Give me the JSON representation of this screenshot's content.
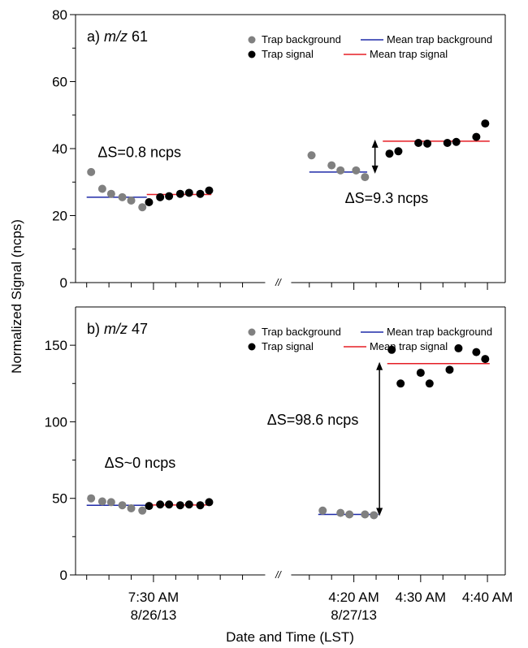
{
  "chart_data": {
    "type": "scatter",
    "y_axis_title": "Normalized Signal (ncps)",
    "x_axis_title": "Date and Time (LST)",
    "axis_break_label": "//",
    "x_axis": {
      "ticks": [
        {
          "label": "7:30 AM",
          "sublabel": "8/26/13",
          "t": 3.5
        },
        {
          "label": "4:20 AM",
          "sublabel": "8/27/13",
          "t": 12.5
        },
        {
          "label": "4:30 AM",
          "sublabel": "",
          "t": 15.5
        },
        {
          "label": "4:40 AM",
          "sublabel": "",
          "t": 18.5
        }
      ],
      "break_at": 8.7
    },
    "colors": {
      "background_point": "#808080",
      "signal_point": "#000000",
      "mean_background": "#1f2aa8",
      "mean_signal": "#e51e25"
    },
    "legend_labels": {
      "background": "Trap background",
      "signal": "Trap signal",
      "mean_background": "Mean trap background",
      "mean_signal": "Mean trap signal"
    },
    "panels": [
      {
        "id": "a",
        "label_prefix": "a) ",
        "label_italic": "m/z",
        "label_suffix": " 61",
        "ylim": [
          0,
          80
        ],
        "yticks": [
          0,
          20,
          40,
          60,
          80
        ],
        "background": [
          {
            "t": 0.7,
            "y": 33.0
          },
          {
            "t": 1.2,
            "y": 28.0
          },
          {
            "t": 1.6,
            "y": 26.5
          },
          {
            "t": 2.1,
            "y": 25.5
          },
          {
            "t": 2.5,
            "y": 24.5
          },
          {
            "t": 3.0,
            "y": 22.5
          },
          {
            "t": 10.6,
            "y": 38.0
          },
          {
            "t": 11.5,
            "y": 35.0
          },
          {
            "t": 11.9,
            "y": 33.5
          },
          {
            "t": 12.6,
            "y": 33.5
          },
          {
            "t": 13.0,
            "y": 31.5
          }
        ],
        "signal": [
          {
            "t": 3.3,
            "y": 24.0
          },
          {
            "t": 3.8,
            "y": 25.5
          },
          {
            "t": 4.2,
            "y": 25.8
          },
          {
            "t": 4.7,
            "y": 26.5
          },
          {
            "t": 5.1,
            "y": 26.8
          },
          {
            "t": 5.6,
            "y": 26.5
          },
          {
            "t": 6.0,
            "y": 27.5
          },
          {
            "t": 14.1,
            "y": 38.5
          },
          {
            "t": 14.5,
            "y": 39.2
          },
          {
            "t": 15.4,
            "y": 41.7
          },
          {
            "t": 15.8,
            "y": 41.5
          },
          {
            "t": 16.7,
            "y": 41.7
          },
          {
            "t": 17.1,
            "y": 42.0
          },
          {
            "t": 18.0,
            "y": 43.5
          },
          {
            "t": 18.4,
            "y": 47.5
          }
        ],
        "mean_background": [
          {
            "t0": 0.5,
            "t1": 3.2,
            "y": 25.5
          },
          {
            "t0": 10.5,
            "t1": 13.1,
            "y": 33.0
          }
        ],
        "mean_signal": [
          {
            "t0": 3.2,
            "t1": 6.1,
            "y": 26.3
          },
          {
            "t0": 13.8,
            "t1": 18.6,
            "y": 42.2
          }
        ],
        "annotations": [
          {
            "text": "ΔS=0.8 ncps",
            "t": 1.0,
            "y": 37.5
          },
          {
            "text": "ΔS=9.3 ncps",
            "t": 12.1,
            "y": 23.8
          }
        ],
        "arrow": {
          "t": 13.45,
          "y0": 33.0,
          "y1": 42.2
        }
      },
      {
        "id": "b",
        "label_prefix": "b) ",
        "label_italic": "m/z",
        "label_suffix": " 47",
        "ylim": [
          0,
          175
        ],
        "yticks": [
          0,
          50,
          100,
          150
        ],
        "background": [
          {
            "t": 0.7,
            "y": 50.0
          },
          {
            "t": 1.2,
            "y": 48.0
          },
          {
            "t": 1.6,
            "y": 47.5
          },
          {
            "t": 2.1,
            "y": 45.5
          },
          {
            "t": 2.5,
            "y": 43.5
          },
          {
            "t": 3.0,
            "y": 42.0
          },
          {
            "t": 11.1,
            "y": 42.0
          },
          {
            "t": 11.9,
            "y": 40.5
          },
          {
            "t": 12.3,
            "y": 39.5
          },
          {
            "t": 13.0,
            "y": 39.5
          },
          {
            "t": 13.4,
            "y": 39.0
          }
        ],
        "signal": [
          {
            "t": 3.3,
            "y": 45.0
          },
          {
            "t": 3.8,
            "y": 46.0
          },
          {
            "t": 4.2,
            "y": 46.0
          },
          {
            "t": 4.7,
            "y": 45.5
          },
          {
            "t": 5.1,
            "y": 46.0
          },
          {
            "t": 5.6,
            "y": 45.5
          },
          {
            "t": 6.0,
            "y": 47.5
          },
          {
            "t": 14.2,
            "y": 147.0
          },
          {
            "t": 14.6,
            "y": 125.0
          },
          {
            "t": 15.5,
            "y": 132.0
          },
          {
            "t": 15.9,
            "y": 125.0
          },
          {
            "t": 16.8,
            "y": 134.0
          },
          {
            "t": 17.2,
            "y": 148.0
          },
          {
            "t": 18.0,
            "y": 145.5
          },
          {
            "t": 18.4,
            "y": 141.0
          }
        ],
        "mean_background": [
          {
            "t0": 0.5,
            "t1": 3.2,
            "y": 45.5
          },
          {
            "t0": 10.9,
            "t1": 13.6,
            "y": 39.5
          }
        ],
        "mean_signal": [
          {
            "t0": 3.2,
            "t1": 6.1,
            "y": 45.7
          },
          {
            "t0": 14.0,
            "t1": 18.6,
            "y": 138.0
          }
        ],
        "annotations": [
          {
            "text": "ΔS~0 ncps",
            "t": 1.3,
            "y": 70.0
          },
          {
            "text": "ΔS=98.6 ncps",
            "t": 8.6,
            "y": 98.0
          }
        ],
        "arrow": {
          "t": 13.65,
          "y0": 39.5,
          "y1": 138.0
        }
      }
    ]
  }
}
